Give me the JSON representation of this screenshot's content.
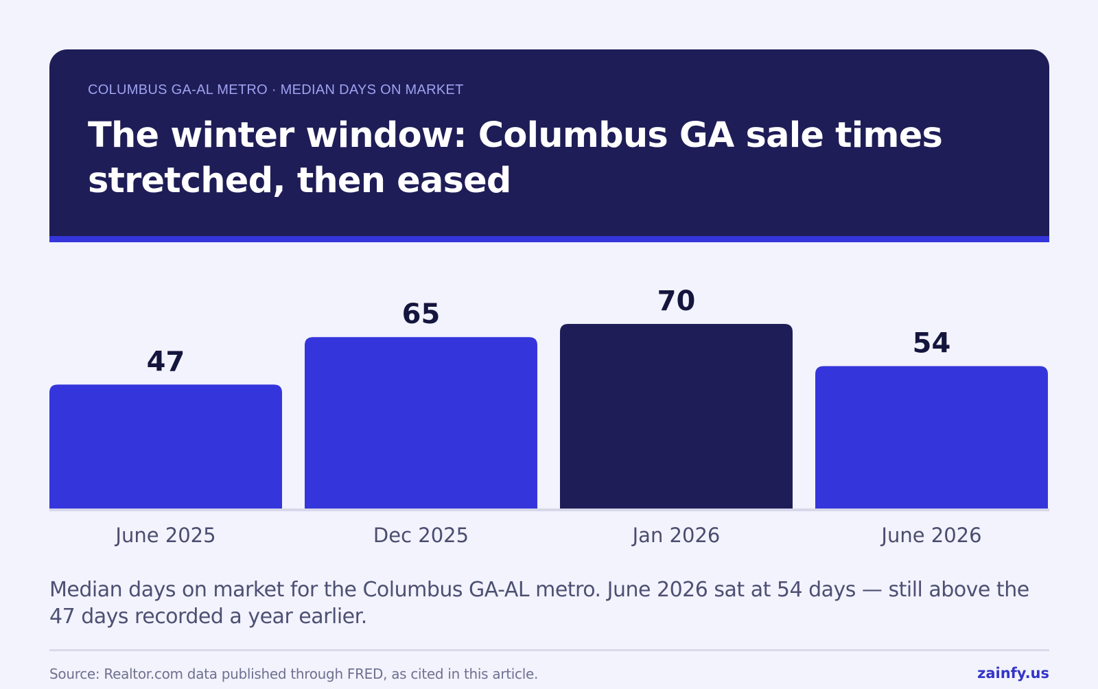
{
  "header": {
    "eyebrow": "COLUMBUS GA-AL METRO · MEDIAN DAYS ON MARKET",
    "title": "The winter window: Columbus GA sale times stretched, then eased"
  },
  "chart_data": {
    "type": "bar",
    "categories": [
      "June 2025",
      "Dec 2025",
      "Jan 2026",
      "June 2026"
    ],
    "values": [
      47,
      65,
      70,
      54
    ],
    "highlight_index": 2,
    "colors": {
      "bar": "#3535dc",
      "highlight": "#1f1d57",
      "baseline": "#d6d7e8"
    },
    "ylim": [
      0,
      70
    ],
    "grid": false,
    "title": "",
    "xlabel": "",
    "ylabel": ""
  },
  "caption": "Median days on market for the Columbus GA-AL metro. June 2026 sat at 54 days — still above the 47 days recorded a year earlier.",
  "footer": {
    "source": "Source: Realtor.com data published through FRED, as cited in this article.",
    "brand": "zainfy.us"
  }
}
